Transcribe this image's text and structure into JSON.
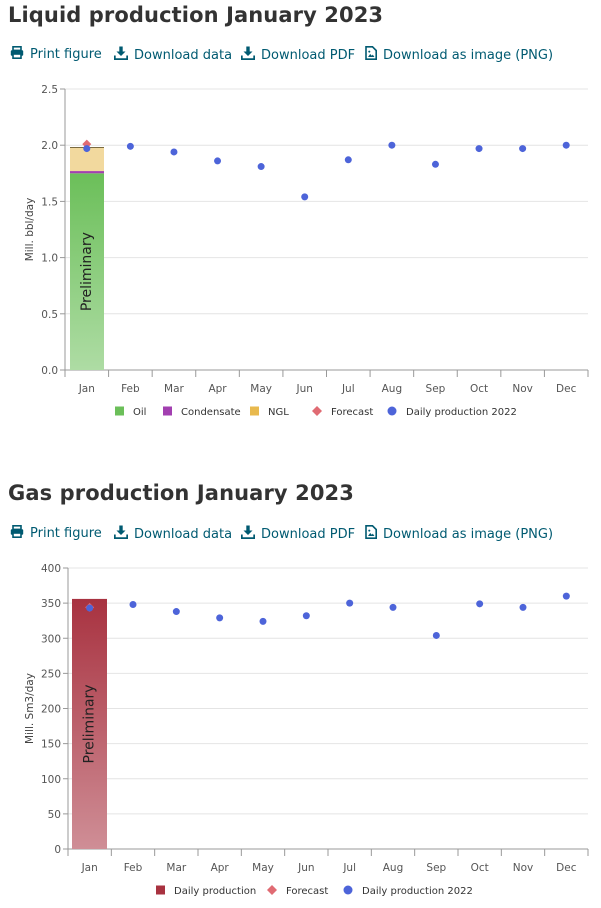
{
  "toolbar": {
    "print": "Print figure",
    "download_data": "Download data",
    "download_pdf": "Download PDF",
    "download_png": "Download as image (PNG)",
    "icons": [
      "print-icon",
      "download-icon",
      "download-icon",
      "image-file-icon"
    ]
  },
  "colors": {
    "link": "#005a71",
    "oil": "#6bbf59",
    "condensate": "#a23fb0",
    "ngl": "#e8b94e",
    "forecast": "#e06b73",
    "daily_2022": "#4d64d9",
    "gas_daily": "#a83240"
  },
  "chart_data": [
    {
      "title": "Liquid production January 2023",
      "type": "bar",
      "ylabel": "Mill. bbl/day",
      "xlabel": "",
      "ylim": [
        0,
        2.5
      ],
      "yticks": [
        "0.0",
        "0.5",
        "1.0",
        "1.5",
        "2.0",
        "2.5"
      ],
      "categories": [
        "Jan",
        "Feb",
        "Mar",
        "Apr",
        "May",
        "Jun",
        "Jul",
        "Aug",
        "Sep",
        "Oct",
        "Nov",
        "Dec"
      ],
      "bar_annotation": "Preliminary",
      "grid": true,
      "legend_position": "bottom",
      "stacked_series": [
        {
          "name": "Oil",
          "values": [
            1.75
          ],
          "color": "#6bbf59"
        },
        {
          "name": "Condensate",
          "values": [
            0.02
          ],
          "color": "#a23fb0"
        },
        {
          "name": "NGL",
          "values": [
            0.21
          ],
          "color": "#e8b94e"
        }
      ],
      "series": [
        {
          "name": "Forecast",
          "type": "scatter",
          "marker": "diamond",
          "values": [
            2.01
          ],
          "color": "#e06b73"
        },
        {
          "name": "Daily production 2022",
          "type": "scatter",
          "marker": "circle",
          "values": [
            1.97,
            1.99,
            1.94,
            1.86,
            1.81,
            1.54,
            1.87,
            2.0,
            1.83,
            1.97,
            1.97,
            2.0
          ],
          "color": "#4d64d9"
        }
      ],
      "legend": [
        "Oil",
        "Condensate",
        "NGL",
        "Forecast",
        "Daily production 2022"
      ]
    },
    {
      "title": "Gas production January 2023",
      "type": "bar",
      "ylabel": "Mill. Sm3/day",
      "xlabel": "",
      "ylim": [
        0,
        400
      ],
      "yticks": [
        "0",
        "50",
        "100",
        "150",
        "200",
        "250",
        "300",
        "350",
        "400"
      ],
      "categories": [
        "Jan",
        "Feb",
        "Mar",
        "Apr",
        "May",
        "Jun",
        "Jul",
        "Aug",
        "Sep",
        "Oct",
        "Nov",
        "Dec"
      ],
      "bar_annotation": "Preliminary",
      "grid": true,
      "legend_position": "bottom",
      "stacked_series": [
        {
          "name": "Daily production",
          "values": [
            356
          ],
          "color": "#a83240"
        }
      ],
      "series": [
        {
          "name": "Forecast",
          "type": "scatter",
          "marker": "diamond",
          "values": [
            344
          ],
          "color": "#e06b73"
        },
        {
          "name": "Daily production 2022",
          "type": "scatter",
          "marker": "circle",
          "values": [
            343,
            348,
            338,
            329,
            324,
            332,
            350,
            344,
            304,
            349,
            344,
            360
          ],
          "color": "#4d64d9"
        }
      ],
      "legend": [
        "Daily production",
        "Forecast",
        "Daily production 2022"
      ]
    }
  ]
}
